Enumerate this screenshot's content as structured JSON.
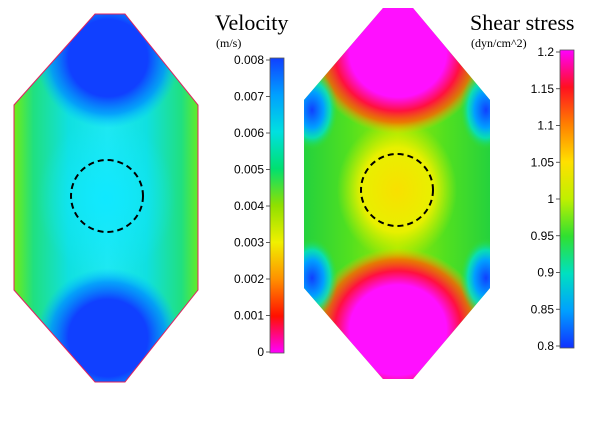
{
  "panels": [
    {
      "id": "velocity",
      "title": "Velocity",
      "units": "(m/s)",
      "colorbar": {
        "ticks": [
          "0.008",
          "0.007",
          "0.006",
          "0.005",
          "0.004",
          "0.003",
          "0.002",
          "0.001",
          "0"
        ],
        "stops": [
          "#1040ff",
          "#00a0ff",
          "#00e0e0",
          "#00e070",
          "#90e000",
          "#f0f000",
          "#ff9000",
          "#ff1000",
          "#ff00ff"
        ]
      }
    },
    {
      "id": "shear",
      "title": "Shear stress",
      "units": "(dyn/cm^2)",
      "colorbar": {
        "ticks": [
          "1.2",
          "1.15",
          "1.1",
          "1.05",
          "1",
          "0.95",
          "0.9",
          "0.85",
          "0.8"
        ],
        "stops": [
          "#ff00ff",
          "#ff1020",
          "#ff8000",
          "#ffe000",
          "#c0f000",
          "#30e030",
          "#00e0c0",
          "#00a0ff",
          "#1030ff"
        ]
      }
    }
  ],
  "colors": {
    "velocity_high": "#1040ff",
    "velocity_mid": "#20e8e8",
    "velocity_low": "#60f040",
    "shear_high": "#ff10ff",
    "shear_mid": "#f0f000",
    "shear_low": "#30d030",
    "shear_edge": "#1060ff",
    "marker": "#000000"
  }
}
